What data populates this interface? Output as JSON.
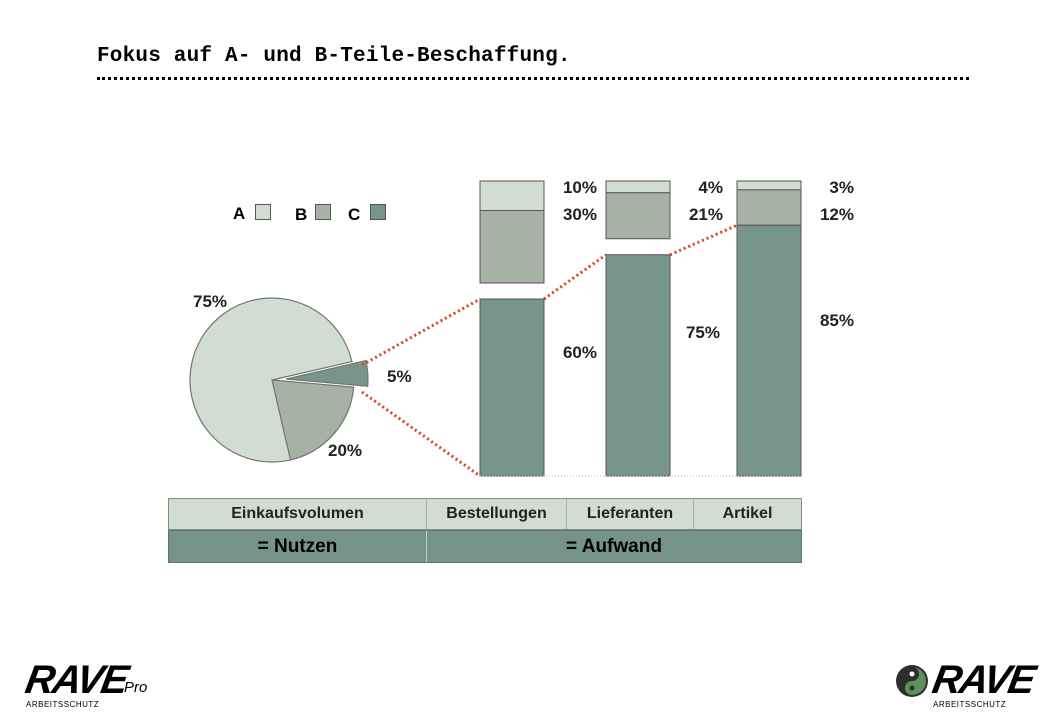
{
  "title": "Fokus auf A- und B-Teile-Beschaffung.",
  "colors": {
    "A": "#d3dcd3",
    "B": "#a8b1a6",
    "C": "#77958a",
    "connector": "#e0401c"
  },
  "legend": [
    {
      "label": "A",
      "color": "#d3dcd3"
    },
    {
      "label": "B",
      "color": "#a8b1a6"
    },
    {
      "label": "C",
      "color": "#77958a"
    }
  ],
  "chart_data": {
    "type": "bar",
    "pie": {
      "type": "pie",
      "slices": [
        {
          "name": "A",
          "value": 75,
          "label": "75%"
        },
        {
          "name": "B",
          "value": 20,
          "label": "20%"
        },
        {
          "name": "C",
          "value": 5,
          "label": "5%"
        }
      ]
    },
    "bars": {
      "type": "bar",
      "stacked": true,
      "normalized": true,
      "categories": [
        "Bestellungen",
        "Lieferanten",
        "Artikel"
      ],
      "series": [
        {
          "name": "C",
          "values": [
            60,
            75,
            85
          ],
          "labels": [
            "60%",
            "75%",
            "85%"
          ]
        },
        {
          "name": "B",
          "values": [
            30,
            21,
            12
          ],
          "labels": [
            "30%",
            "21%",
            "12%"
          ]
        },
        {
          "name": "A",
          "values": [
            10,
            4,
            3
          ],
          "labels": [
            "10%",
            "4%",
            "3%"
          ]
        }
      ],
      "note": "C segment shown separated from the A/B stack"
    }
  },
  "table": {
    "headers": [
      "Einkaufsvolumen",
      "Bestellungen",
      "Lieferanten",
      "Artikel"
    ],
    "nutzen": "= Nutzen",
    "aufwand": "= Aufwand"
  },
  "logo_left": {
    "brand": "RAVE",
    "sub": "ARBEITSSCHUTZ",
    "suffix": "Pro"
  },
  "logo_right": {
    "brand": "RAVE",
    "sub": "ARBEITSSCHUTZ"
  }
}
